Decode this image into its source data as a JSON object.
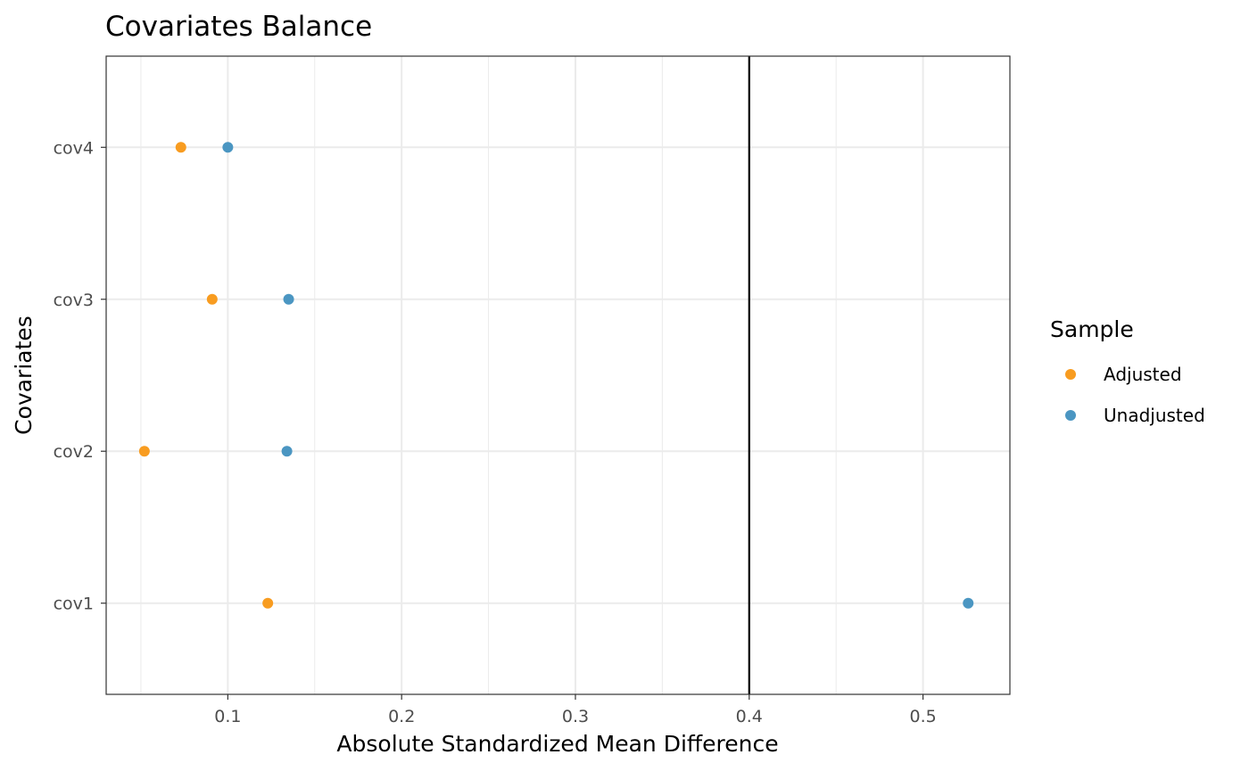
{
  "chart_data": {
    "type": "scatter",
    "title": "Covariates Balance",
    "xlabel": "Absolute Standardized Mean Difference",
    "ylabel": "Covariates",
    "categories": [
      "cov1",
      "cov2",
      "cov3",
      "cov4"
    ],
    "xlim": [
      0.03,
      0.55
    ],
    "x_ticks": [
      "0.1",
      "0.2",
      "0.3",
      "0.4",
      "0.5"
    ],
    "x_tick_values": [
      0.1,
      0.2,
      0.3,
      0.4,
      0.5
    ],
    "threshold_x": 0.4,
    "grid": true,
    "legend": {
      "title": "Sample",
      "position": "right"
    },
    "series": [
      {
        "name": "Adjusted",
        "color": "#F89C20",
        "values": [
          0.123,
          0.052,
          0.091,
          0.073
        ]
      },
      {
        "name": "Unadjusted",
        "color": "#4B96C2",
        "values": [
          0.526,
          0.134,
          0.135,
          0.1
        ]
      }
    ]
  }
}
